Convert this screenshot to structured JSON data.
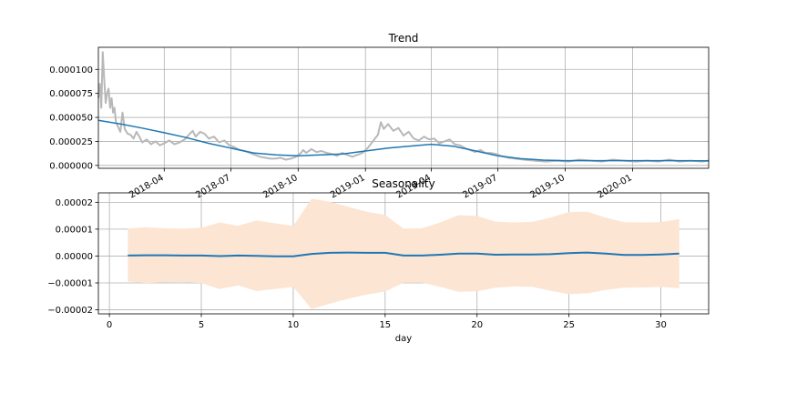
{
  "chart_data": [
    {
      "type": "line",
      "title": "Trend",
      "xlabel": "",
      "ylabel": "",
      "x_domain": [
        "2018-01-01",
        "2020-04-14"
      ],
      "ylim": [
        -3e-06,
        0.000123
      ],
      "xticks": [
        {
          "date": "2018-04-01",
          "label": "2018-04"
        },
        {
          "date": "2018-07-01",
          "label": "2018-07"
        },
        {
          "date": "2018-10-01",
          "label": "2018-10"
        },
        {
          "date": "2019-01-01",
          "label": "2019-01"
        },
        {
          "date": "2019-04-01",
          "label": "2019-04"
        },
        {
          "date": "2019-07-01",
          "label": "2019-07"
        },
        {
          "date": "2019-10-01",
          "label": "2019-10"
        },
        {
          "date": "2020-01-01",
          "label": "2020-01"
        }
      ],
      "yticks": [
        {
          "value": 0.0,
          "label": "0.000000"
        },
        {
          "value": 2.5e-05,
          "label": "0.000025"
        },
        {
          "value": 5e-05,
          "label": "0.000050"
        },
        {
          "value": 7.5e-05,
          "label": "0.000075"
        },
        {
          "value": 0.0001,
          "label": "0.000100"
        }
      ],
      "grid": true,
      "series": [
        {
          "color": "#b8b8b8",
          "points": [
            [
              "2018-01-01",
              7e-05
            ],
            [
              "2018-01-03",
              8.5e-05
            ],
            [
              "2018-01-05",
              6e-05
            ],
            [
              "2018-01-07",
              0.000118
            ],
            [
              "2018-01-09",
              9e-05
            ],
            [
              "2018-01-11",
              6.5e-05
            ],
            [
              "2018-01-13",
              7.5e-05
            ],
            [
              "2018-01-15",
              8e-05
            ],
            [
              "2018-01-17",
              6e-05
            ],
            [
              "2018-01-19",
              7e-05
            ],
            [
              "2018-01-21",
              5.5e-05
            ],
            [
              "2018-01-23",
              6e-05
            ],
            [
              "2018-01-25",
              4.5e-05
            ],
            [
              "2018-01-28",
              4e-05
            ],
            [
              "2018-01-31",
              3.5e-05
            ],
            [
              "2018-02-03",
              5.5e-05
            ],
            [
              "2018-02-06",
              3.8e-05
            ],
            [
              "2018-02-10",
              3.3e-05
            ],
            [
              "2018-02-14",
              3.2e-05
            ],
            [
              "2018-02-18",
              2.8e-05
            ],
            [
              "2018-02-22",
              3.5e-05
            ],
            [
              "2018-02-26",
              3e-05
            ],
            [
              "2018-03-02",
              2.4e-05
            ],
            [
              "2018-03-08",
              2.7e-05
            ],
            [
              "2018-03-14",
              2.2e-05
            ],
            [
              "2018-03-20",
              2.5e-05
            ],
            [
              "2018-03-26",
              2.1e-05
            ],
            [
              "2018-04-01",
              2.3e-05
            ],
            [
              "2018-04-08",
              2.6e-05
            ],
            [
              "2018-04-15",
              2.2e-05
            ],
            [
              "2018-04-22",
              2.4e-05
            ],
            [
              "2018-04-29",
              2.7e-05
            ],
            [
              "2018-05-06",
              3.3e-05
            ],
            [
              "2018-05-10",
              3.6e-05
            ],
            [
              "2018-05-14",
              3e-05
            ],
            [
              "2018-05-20",
              3.5e-05
            ],
            [
              "2018-05-26",
              3.3e-05
            ],
            [
              "2018-06-01",
              2.8e-05
            ],
            [
              "2018-06-08",
              3e-05
            ],
            [
              "2018-06-15",
              2.4e-05
            ],
            [
              "2018-06-22",
              2.6e-05
            ],
            [
              "2018-06-29",
              2.1e-05
            ],
            [
              "2018-07-06",
              1.9e-05
            ],
            [
              "2018-07-13",
              1.6e-05
            ],
            [
              "2018-07-20",
              1.5e-05
            ],
            [
              "2018-07-27",
              1.3e-05
            ],
            [
              "2018-08-03",
              1.1e-05
            ],
            [
              "2018-08-10",
              9e-06
            ],
            [
              "2018-08-17",
              8e-06
            ],
            [
              "2018-08-24",
              7e-06
            ],
            [
              "2018-08-31",
              7e-06
            ],
            [
              "2018-09-07",
              8e-06
            ],
            [
              "2018-09-14",
              6e-06
            ],
            [
              "2018-09-21",
              7e-06
            ],
            [
              "2018-09-28",
              9e-06
            ],
            [
              "2018-10-05",
              1.3e-05
            ],
            [
              "2018-10-08",
              1.6e-05
            ],
            [
              "2018-10-12",
              1.3e-05
            ],
            [
              "2018-10-19",
              1.7e-05
            ],
            [
              "2018-10-26",
              1.4e-05
            ],
            [
              "2018-11-02",
              1.5e-05
            ],
            [
              "2018-11-09",
              1.3e-05
            ],
            [
              "2018-11-16",
              1.2e-05
            ],
            [
              "2018-11-23",
              1e-05
            ],
            [
              "2018-11-30",
              1.3e-05
            ],
            [
              "2018-12-07",
              1.1e-05
            ],
            [
              "2018-12-14",
              9e-06
            ],
            [
              "2018-12-21",
              1.1e-05
            ],
            [
              "2018-12-28",
              1.3e-05
            ],
            [
              "2019-01-04",
              1.8e-05
            ],
            [
              "2019-01-11",
              2.5e-05
            ],
            [
              "2019-01-18",
              3.2e-05
            ],
            [
              "2019-01-22",
              4.5e-05
            ],
            [
              "2019-01-26",
              3.8e-05
            ],
            [
              "2019-02-01",
              4.3e-05
            ],
            [
              "2019-02-08",
              3.6e-05
            ],
            [
              "2019-02-15",
              3.9e-05
            ],
            [
              "2019-02-22",
              3.1e-05
            ],
            [
              "2019-03-01",
              3.5e-05
            ],
            [
              "2019-03-08",
              2.8e-05
            ],
            [
              "2019-03-15",
              2.6e-05
            ],
            [
              "2019-03-22",
              3e-05
            ],
            [
              "2019-03-29",
              2.7e-05
            ],
            [
              "2019-04-05",
              2.8e-05
            ],
            [
              "2019-04-12",
              2.3e-05
            ],
            [
              "2019-04-19",
              2.5e-05
            ],
            [
              "2019-04-26",
              2.7e-05
            ],
            [
              "2019-05-03",
              2.2e-05
            ],
            [
              "2019-05-10",
              2.1e-05
            ],
            [
              "2019-05-17",
              1.8e-05
            ],
            [
              "2019-05-24",
              1.6e-05
            ],
            [
              "2019-05-31",
              1.4e-05
            ],
            [
              "2019-06-07",
              1.6e-05
            ],
            [
              "2019-06-14",
              1.3e-05
            ],
            [
              "2019-06-21",
              1.3e-05
            ],
            [
              "2019-06-28",
              1.2e-05
            ],
            [
              "2019-07-05",
              1e-05
            ],
            [
              "2019-07-15",
              8e-06
            ],
            [
              "2019-07-25",
              7e-06
            ],
            [
              "2019-08-05",
              6e-06
            ],
            [
              "2019-08-20",
              5e-06
            ],
            [
              "2019-09-05",
              4e-06
            ],
            [
              "2019-09-20",
              5e-06
            ],
            [
              "2019-10-05",
              4e-06
            ],
            [
              "2019-10-20",
              6e-06
            ],
            [
              "2019-11-05",
              5e-06
            ],
            [
              "2019-11-20",
              4e-06
            ],
            [
              "2019-12-05",
              6e-06
            ],
            [
              "2019-12-20",
              5e-06
            ],
            [
              "2020-01-05",
              4e-06
            ],
            [
              "2020-01-20",
              5e-06
            ],
            [
              "2020-02-05",
              4e-06
            ],
            [
              "2020-02-20",
              6e-06
            ],
            [
              "2020-03-05",
              4e-06
            ],
            [
              "2020-03-20",
              5e-06
            ],
            [
              "2020-04-05",
              4e-06
            ],
            [
              "2020-04-14",
              5e-06
            ]
          ]
        },
        {
          "color": "#1f77b4",
          "points": [
            [
              "2018-01-01",
              4.7e-05
            ],
            [
              "2018-02-01",
              4.3e-05
            ],
            [
              "2018-03-01",
              3.9e-05
            ],
            [
              "2018-04-01",
              3.4e-05
            ],
            [
              "2018-05-01",
              2.9e-05
            ],
            [
              "2018-06-01",
              2.3e-05
            ],
            [
              "2018-07-01",
              1.8e-05
            ],
            [
              "2018-08-01",
              1.3e-05
            ],
            [
              "2018-09-01",
              1.1e-05
            ],
            [
              "2018-10-01",
              1e-05
            ],
            [
              "2018-11-01",
              1.1e-05
            ],
            [
              "2018-12-01",
              1.2e-05
            ],
            [
              "2019-01-01",
              1.5e-05
            ],
            [
              "2019-02-01",
              1.8e-05
            ],
            [
              "2019-03-01",
              2e-05
            ],
            [
              "2019-04-01",
              2.2e-05
            ],
            [
              "2019-05-01",
              2e-05
            ],
            [
              "2019-06-01",
              1.5e-05
            ],
            [
              "2019-07-01",
              1e-05
            ],
            [
              "2019-08-01",
              7e-06
            ],
            [
              "2019-09-01",
              5.5e-06
            ],
            [
              "2019-10-01",
              5e-06
            ],
            [
              "2019-11-01",
              5e-06
            ],
            [
              "2019-12-01",
              5e-06
            ],
            [
              "2020-01-01",
              5e-06
            ],
            [
              "2020-02-01",
              5e-06
            ],
            [
              "2020-03-01",
              5e-06
            ],
            [
              "2020-04-14",
              4.8e-06
            ]
          ]
        }
      ]
    },
    {
      "type": "line",
      "title": "Seasonality",
      "xlabel": "day",
      "ylabel": "",
      "xlim": [
        -0.6,
        32.6
      ],
      "ylim": [
        -2.15e-05,
        2.35e-05
      ],
      "xticks": [
        {
          "value": 0,
          "label": "0"
        },
        {
          "value": 5,
          "label": "5"
        },
        {
          "value": 10,
          "label": "10"
        },
        {
          "value": 15,
          "label": "15"
        },
        {
          "value": 20,
          "label": "20"
        },
        {
          "value": 25,
          "label": "25"
        },
        {
          "value": 30,
          "label": "30"
        }
      ],
      "yticks": [
        {
          "value": -2e-05,
          "label": "−0.00002"
        },
        {
          "value": -1e-05,
          "label": "−0.00001"
        },
        {
          "value": 0.0,
          "label": "0.00000"
        },
        {
          "value": 1e-05,
          "label": "0.00001"
        },
        {
          "value": 2e-05,
          "label": "0.00002"
        }
      ],
      "grid": true,
      "band_color": "#fde5d3",
      "line_color": "#1f77b4",
      "x": [
        1,
        2,
        3,
        4,
        5,
        6,
        7,
        8,
        9,
        10,
        11,
        12,
        13,
        14,
        15,
        16,
        17,
        18,
        19,
        20,
        21,
        22,
        23,
        24,
        25,
        26,
        27,
        28,
        29,
        30,
        31
      ],
      "mean": [
        2e-07,
        3e-07,
        3e-07,
        2e-07,
        2e-07,
        0.0,
        2e-07,
        1e-07,
        -1e-07,
        -1e-07,
        8e-07,
        1.2e-06,
        1.3e-06,
        1.2e-06,
        1.2e-06,
        2e-07,
        2e-07,
        5e-07,
        9e-07,
        9e-07,
        5e-07,
        6e-07,
        6e-07,
        7e-07,
        1.1e-06,
        1.3e-06,
        9e-07,
        4e-07,
        4e-07,
        6e-07,
        9e-07
      ],
      "upper": [
        1.02e-05,
        1.07e-05,
        1.03e-05,
        1.02e-05,
        1.05e-05,
        1.25e-05,
        1.13e-05,
        1.32e-05,
        1.22e-05,
        1.12e-05,
        2.13e-05,
        2.02e-05,
        1.83e-05,
        1.65e-05,
        1.53e-05,
        1.02e-05,
        1.03e-05,
        1.25e-05,
        1.52e-05,
        1.49e-05,
        1.28e-05,
        1.25e-05,
        1.27e-05,
        1.43e-05,
        1.64e-05,
        1.65e-05,
        1.43e-05,
        1.26e-05,
        1.25e-05,
        1.26e-05,
        1.38e-05
      ],
      "lower": [
        -9.5e-06,
        -1.01e-05,
        -9.8e-06,
        -9.7e-06,
        -1.01e-05,
        -1.23e-05,
        -1.09e-05,
        -1.3e-05,
        -1.23e-05,
        -1.15e-05,
        -1.97e-05,
        -1.77e-05,
        -1.59e-05,
        -1.43e-05,
        -1.32e-05,
        -9.9e-06,
        -9.9e-06,
        -1.15e-05,
        -1.33e-05,
        -1.31e-05,
        -1.18e-05,
        -1.13e-05,
        -1.15e-05,
        -1.29e-05,
        -1.42e-05,
        -1.39e-05,
        -1.26e-05,
        -1.18e-05,
        -1.17e-05,
        -1.15e-05,
        -1.2e-05
      ]
    }
  ]
}
